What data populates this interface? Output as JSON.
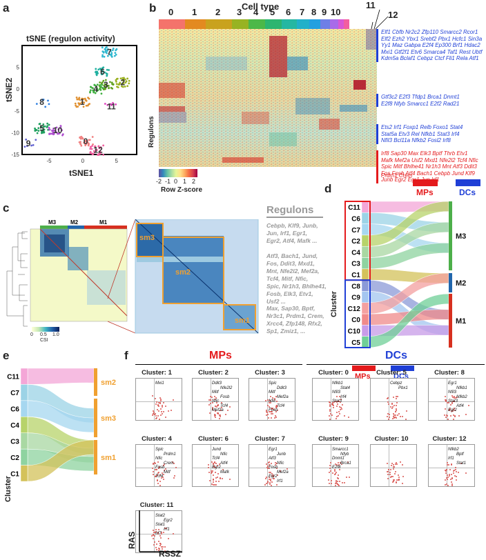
{
  "panel_labels": {
    "a": "a",
    "b": "b",
    "c": "c",
    "d": "d",
    "e": "e",
    "f": "f"
  },
  "colors": {
    "mps": "#e41a1c",
    "dcs": "#1f3fd6",
    "csi_dark": "#08306b",
    "m1": "#d7301f",
    "m2": "#2166ac",
    "m3": "#4daf4a",
    "sm": "#f0a030"
  },
  "panel_a": {
    "title": "tSNE (regulon activity)",
    "xlabel": "tSNE1",
    "ylabel": "tSNE2",
    "yticks": [
      "5",
      "0",
      "-5",
      "-10",
      "-15"
    ],
    "xticks": [
      "-5",
      "0",
      "5"
    ],
    "chart_data": {
      "type": "scatter",
      "title": "tSNE (regulon activity)",
      "xlabel": "tSNE1",
      "ylabel": "tSNE2",
      "xlim": [
        -9,
        8
      ],
      "ylim": [
        -15,
        10
      ],
      "clusters": [
        {
          "name": "0",
          "x": 0.5,
          "y": -12,
          "color": "#f08080",
          "label": "0"
        },
        {
          "name": "1",
          "x": 0,
          "y": -3,
          "color": "#e09030",
          "label": "1"
        },
        {
          "name": "2",
          "x": 6,
          "y": 1.5,
          "color": "#9ab020",
          "label": "2"
        },
        {
          "name": "3",
          "x": 3.5,
          "y": 1,
          "color": "#60a020",
          "label": "3"
        },
        {
          "name": "4",
          "x": 2,
          "y": 0,
          "color": "#40b040",
          "label": "4"
        },
        {
          "name": "5",
          "x": -6,
          "y": -9,
          "color": "#20a060",
          "label": "5"
        },
        {
          "name": "6",
          "x": 3,
          "y": 4,
          "color": "#20b0a0",
          "label": "6"
        },
        {
          "name": "7",
          "x": 4,
          "y": 8.5,
          "color": "#30b8d0",
          "label": "7"
        },
        {
          "name": "8",
          "x": -6,
          "y": -3,
          "color": "#3080e0",
          "label": "8"
        },
        {
          "name": "9",
          "x": -8,
          "y": -12.5,
          "color": "#6060d0",
          "label": "9"
        },
        {
          "name": "10",
          "x": -4,
          "y": -9.5,
          "color": "#b050d0",
          "label": "10"
        },
        {
          "name": "11",
          "x": 4,
          "y": -4,
          "color": "#e040c0",
          "label": "11"
        },
        {
          "name": "12",
          "x": 2,
          "y": -14,
          "color": "#f060a0",
          "label": "12"
        }
      ]
    }
  },
  "panel_b": {
    "header": "Cell type",
    "clusters": [
      "0",
      "1",
      "2",
      "3",
      "4",
      "5",
      "6",
      "7",
      "8",
      "9",
      "10",
      "11",
      "12"
    ],
    "cluster_colors": [
      "#f4736b",
      "#e38a20",
      "#c9a21e",
      "#98b322",
      "#4cb848",
      "#2db570",
      "#25b7a2",
      "#22b0c9",
      "#23a0e0",
      "#6e7fe6",
      "#a86be9",
      "#d957d5",
      "#f25fa0"
    ],
    "ylabel": "Regulons",
    "legend_title": "Row Z-score",
    "legend_ticks": [
      "-2",
      "-1",
      "0",
      "1",
      "2"
    ],
    "gene_groups": [
      {
        "color": "blue",
        "lines": [
          "Elf1 Cbfb Nr2c2 Zfp110 Smarcc2 Rcor1",
          "Elf2 Ezh2 Ybx1 Srebf2 Pbx1 Hcfc1 Sin3a",
          "Yy1 Maz Gabpa E2f4 Ep300 Brf1 Hdac2",
          "Mxi1 Gtf2f1 Etv6 Smarca4 Taf1 Rest Ubtf",
          "Kdm5a Bclaf1 Cebpz Ctcf Fli1 Rela Atf1"
        ]
      },
      {
        "color": "blue",
        "lines": [
          "Gtf3c2 E2f3 Tfdp1 Brca1 Dnmt1",
          "E2f8 Nfyb Smarcc1 E2f2 Rad21"
        ]
      },
      {
        "color": "blue",
        "lines": [
          "Ets2 Irf1 Foxp1 Relb Foxo1 Stat4",
          "Stat5a Etv3 Rel Nfkb1 Stat3 Irf4",
          "Nfil3 Bcl11a Nfkb2 Fosl2 Irf8"
        ]
      },
      {
        "color": "red",
        "lines": [
          "Irf8 Sap30 Max Elk3 Bptf Thrb Etv1",
          "Mafk Mef2a Usf2 Mxd1 Nfe2l2 Tcf4 Nfic",
          "Spic Mitf Bhlhe41 Nr1h3 Mnt Atf3 Ddit3",
          "Fos Fosb Atf4 Bach1 Cebpb Jund Klf9",
          "Junb Egr2 Egr1 Jun Irf1"
        ]
      },
      {
        "color": "red",
        "lines": [
          "Prdm1 Crem"
        ]
      }
    ],
    "mps_label": "MPs",
    "dcs_label": "DCs"
  },
  "panel_c": {
    "modules": [
      "M3",
      "M2",
      "M1"
    ],
    "submodules": [
      "sm3",
      "sm2",
      "sm1"
    ],
    "csi_label": "CSI",
    "csi_ticks": [
      "0",
      "0.5",
      "1.0"
    ],
    "regulons_title": "Regulons",
    "regulon_groups": [
      [
        "Cebpb, Klf9, Junb,",
        "Jun, Irf1, Egr1,",
        "Egr2, Atf4, Mafk ..."
      ],
      [
        "Atf3, Bach1, Jund,",
        "Fos, Ddit3, Mxd1,",
        "Mnt, Nfe2l2, Mef2a,",
        "Tcf4, Mitf, Nfic,",
        "Spic, Nr1h3, Bhlhe41,",
        "Fosb, Elk3, Etv1,",
        "Usf2 ..."
      ],
      [
        "Max, Sap30, Bptf,",
        "Nr3c1, Prdm1, Crem,",
        "Xrcc4, Zfp148, Rfx2,",
        "Sp1, Zmiz1, ..."
      ]
    ]
  },
  "panel_d": {
    "left": [
      "C11",
      "C6",
      "C7",
      "C2",
      "C4",
      "C3",
      "C1",
      "C8",
      "C9",
      "C12",
      "C0",
      "C10",
      "C5"
    ],
    "right": [
      "M3",
      "M2",
      "M1"
    ],
    "axis": "Cluster",
    "mps_label": "MPs",
    "dcs_label": "DCs"
  },
  "panel_e": {
    "left": [
      "C11",
      "C7",
      "C6",
      "C4",
      "C3",
      "C2",
      "C1"
    ],
    "right": [
      "sm2",
      "sm3",
      "sm1"
    ],
    "axis": "Cluster"
  },
  "panel_f": {
    "mps_title": "MPs",
    "dcs_title": "DCs",
    "xlabel": "RSSZ",
    "ylabel": "RAS",
    "plots": [
      {
        "title": "Cluster: 1",
        "genes": [
          "Mxi1"
        ]
      },
      {
        "title": "Cluster: 2",
        "genes": [
          "Ddit3",
          "Nfe2l2",
          "Mitf",
          "Fosb",
          "Nfic",
          "Tcf4",
          "Mef2a"
        ]
      },
      {
        "title": "Cluster: 3",
        "genes": [
          "Spic",
          "Ddit3",
          "Mitf",
          "Mef2a",
          "Nfic",
          "Tcf4",
          "Fosb"
        ]
      },
      {
        "title": "Cluster: 0",
        "genes": [
          "Nfkb1",
          "Stat4",
          "Nfil3",
          "Irf4",
          "Stat3"
        ]
      },
      {
        "title": "Cluster: 5",
        "genes": [
          "Cebpz",
          "Pbx1"
        ]
      },
      {
        "title": "Cluster: 8",
        "genes": [
          "Egr1",
          "Nfkb1",
          "Nfil3",
          "Nfkb2",
          "Stat3",
          "Atf4",
          "Egr2"
        ]
      },
      {
        "title": "Cluster: 4",
        "genes": [
          "Spic",
          "Prdm1",
          "Nfic",
          "Crem",
          "Fosb",
          "Mitf",
          "Tcf4"
        ]
      },
      {
        "title": "Cluster: 6",
        "genes": [
          "Jund",
          "Nfic",
          "Tcf4",
          "Atf4",
          "Egr2",
          "Mafk"
        ]
      },
      {
        "title": "Cluster: 7",
        "genes": [
          "Egr1",
          "Junb",
          "Atf3",
          "Nfic",
          "Fosb",
          "Mef2a",
          "Egr2",
          "Irf1"
        ]
      },
      {
        "title": "Cluster: 9",
        "genes": [
          "Smarcc1",
          "Nfyb",
          "Dnmt1",
          "Brca1",
          "E2f8"
        ]
      },
      {
        "title": "Cluster: 10",
        "genes": []
      },
      {
        "title": "Cluster: 12",
        "genes": [
          "Nfkb2",
          "Bptf",
          "Irf1",
          "Stat1"
        ]
      },
      {
        "title": "Cluster: 11",
        "genes": [
          "Stat2",
          "Egr2",
          "Stat1",
          "Irf1",
          "Irf7"
        ]
      }
    ]
  }
}
